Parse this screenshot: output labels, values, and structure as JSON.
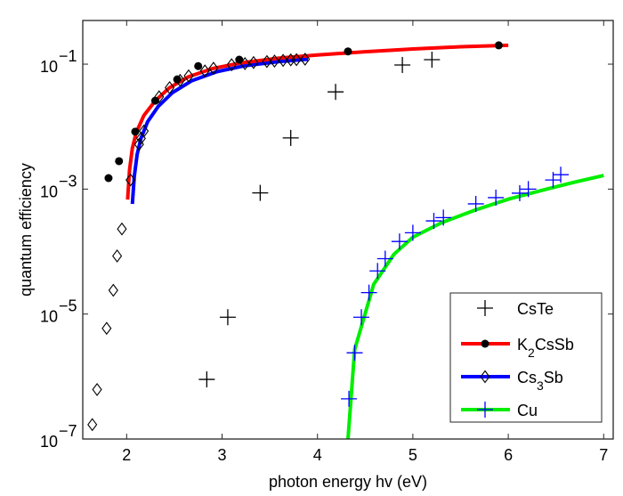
{
  "chart_data": {
    "type": "scatter",
    "title": "",
    "xlabel": "photon energy hv (eV)",
    "ylabel": "quantum efficiency",
    "xscale": "linear",
    "yscale": "log",
    "xlim": [
      1.54,
      7.1
    ],
    "ylim": [
      1e-07,
      0.5
    ],
    "grid": false,
    "legend_position": "bottom-right",
    "x_ticks": [
      2,
      3,
      4,
      5,
      6,
      7
    ],
    "x_tick_labels": [
      "2",
      "3",
      "4",
      "5",
      "6",
      "7"
    ],
    "y_ticks": [
      1e-07,
      1e-05,
      0.001,
      0.1
    ],
    "y_tick_labels": [
      {
        "base": "10",
        "exp": "−7"
      },
      {
        "base": "10",
        "exp": "−5"
      },
      {
        "base": "10",
        "exp": "−3"
      },
      {
        "base": "10",
        "exp": "−1"
      }
    ],
    "y_minor_ticks": [
      1e-06,
      0.0001,
      0.01
    ],
    "series": [
      {
        "name": "CsTe",
        "legend_label": {
          "main": "CsTe",
          "sub": "",
          "tail": ""
        },
        "marker": "plus",
        "marker_color": "#000000",
        "line_color": null,
        "points": [
          {
            "x": 2.84,
            "y": 9e-07
          },
          {
            "x": 3.06,
            "y": 8.9e-06
          },
          {
            "x": 3.4,
            "y": 0.00087
          },
          {
            "x": 3.72,
            "y": 0.0066
          },
          {
            "x": 4.19,
            "y": 0.036
          },
          {
            "x": 4.89,
            "y": 0.097
          },
          {
            "x": 5.2,
            "y": 0.118
          }
        ],
        "curve": []
      },
      {
        "name": "K2CsSb",
        "legend_label": {
          "main": "K",
          "sub": "2",
          "tail": "CsSb"
        },
        "marker": "filled-circle",
        "marker_color": "#000000",
        "line_color": "#ff0000",
        "points": [
          {
            "x": 1.81,
            "y": 0.0015
          },
          {
            "x": 1.92,
            "y": 0.0028
          },
          {
            "x": 2.09,
            "y": 0.0083
          },
          {
            "x": 2.3,
            "y": 0.026
          },
          {
            "x": 2.53,
            "y": 0.057
          },
          {
            "x": 2.75,
            "y": 0.093
          },
          {
            "x": 3.18,
            "y": 0.118
          },
          {
            "x": 4.32,
            "y": 0.16
          },
          {
            "x": 5.9,
            "y": 0.2
          }
        ],
        "curve": [
          {
            "x": 2.01,
            "y": 0.00068
          },
          {
            "x": 2.03,
            "y": 0.002
          },
          {
            "x": 2.06,
            "y": 0.0045
          },
          {
            "x": 2.1,
            "y": 0.008
          },
          {
            "x": 2.18,
            "y": 0.015
          },
          {
            "x": 2.3,
            "y": 0.026
          },
          {
            "x": 2.45,
            "y": 0.042
          },
          {
            "x": 2.65,
            "y": 0.063
          },
          {
            "x": 2.9,
            "y": 0.085
          },
          {
            "x": 3.2,
            "y": 0.105
          },
          {
            "x": 3.6,
            "y": 0.125
          },
          {
            "x": 4.0,
            "y": 0.14
          },
          {
            "x": 4.5,
            "y": 0.158
          },
          {
            "x": 5.0,
            "y": 0.175
          },
          {
            "x": 5.5,
            "y": 0.19
          },
          {
            "x": 6.0,
            "y": 0.2
          }
        ]
      },
      {
        "name": "Cs3Sb",
        "legend_label": {
          "main": "Cs",
          "sub": "3",
          "tail": "Sb"
        },
        "marker": "open-diamond",
        "marker_color": "#000000",
        "line_color": "#0000ff",
        "points": [
          {
            "x": 1.64,
            "y": 1.7e-07
          },
          {
            "x": 1.69,
            "y": 6.2e-07
          },
          {
            "x": 1.79,
            "y": 5.9e-06
          },
          {
            "x": 1.86,
            "y": 2.4e-05
          },
          {
            "x": 1.9,
            "y": 8.5e-05
          },
          {
            "x": 1.95,
            "y": 0.00023
          },
          {
            "x": 2.04,
            "y": 0.0014
          },
          {
            "x": 2.13,
            "y": 0.0052
          },
          {
            "x": 2.15,
            "y": 0.0065
          },
          {
            "x": 2.18,
            "y": 0.0085
          },
          {
            "x": 2.34,
            "y": 0.03
          },
          {
            "x": 2.45,
            "y": 0.042
          },
          {
            "x": 2.56,
            "y": 0.055
          },
          {
            "x": 2.65,
            "y": 0.065
          },
          {
            "x": 2.82,
            "y": 0.078
          },
          {
            "x": 2.91,
            "y": 0.086
          },
          {
            "x": 3.1,
            "y": 0.098
          },
          {
            "x": 3.24,
            "y": 0.102
          },
          {
            "x": 3.33,
            "y": 0.106
          },
          {
            "x": 3.47,
            "y": 0.11
          },
          {
            "x": 3.55,
            "y": 0.112
          },
          {
            "x": 3.64,
            "y": 0.115
          },
          {
            "x": 3.72,
            "y": 0.117
          },
          {
            "x": 3.78,
            "y": 0.118
          },
          {
            "x": 3.87,
            "y": 0.12
          }
        ],
        "curve": [
          {
            "x": 2.06,
            "y": 0.00058
          },
          {
            "x": 2.08,
            "y": 0.0016
          },
          {
            "x": 2.11,
            "y": 0.0036
          },
          {
            "x": 2.15,
            "y": 0.0065
          },
          {
            "x": 2.22,
            "y": 0.012
          },
          {
            "x": 2.33,
            "y": 0.021
          },
          {
            "x": 2.48,
            "y": 0.035
          },
          {
            "x": 2.68,
            "y": 0.054
          },
          {
            "x": 2.95,
            "y": 0.076
          },
          {
            "x": 3.25,
            "y": 0.095
          },
          {
            "x": 3.6,
            "y": 0.11
          },
          {
            "x": 3.9,
            "y": 0.12
          }
        ]
      },
      {
        "name": "Cu",
        "legend_label": {
          "main": "Cu",
          "sub": "",
          "tail": ""
        },
        "marker": "plus",
        "marker_color": "#0000ff",
        "line_color": "#00ee00",
        "points": [
          {
            "x": 4.33,
            "y": 4.4e-07
          },
          {
            "x": 4.39,
            "y": 2.4e-06
          },
          {
            "x": 4.46,
            "y": 8.9e-06
          },
          {
            "x": 4.54,
            "y": 2.2e-05
          },
          {
            "x": 4.63,
            "y": 4.9e-05
          },
          {
            "x": 4.71,
            "y": 7.7e-05
          },
          {
            "x": 4.86,
            "y": 0.000145
          },
          {
            "x": 5.0,
            "y": 0.0002
          },
          {
            "x": 5.22,
            "y": 0.00031
          },
          {
            "x": 5.32,
            "y": 0.00035
          },
          {
            "x": 5.66,
            "y": 0.00058
          },
          {
            "x": 5.87,
            "y": 0.00073
          },
          {
            "x": 6.12,
            "y": 0.00086
          },
          {
            "x": 6.21,
            "y": 0.001
          },
          {
            "x": 6.47,
            "y": 0.0014
          },
          {
            "x": 6.55,
            "y": 0.0017
          }
        ],
        "curve": [
          {
            "x": 4.32,
            "y": 1e-07
          },
          {
            "x": 4.39,
            "y": 2.7e-06
          },
          {
            "x": 4.59,
            "y": 3e-05
          },
          {
            "x": 4.8,
            "y": 9e-05
          },
          {
            "x": 5.0,
            "y": 0.00017
          },
          {
            "x": 5.3,
            "y": 0.00029
          },
          {
            "x": 5.65,
            "y": 0.00046
          },
          {
            "x": 6.0,
            "y": 0.00069
          },
          {
            "x": 6.4,
            "y": 0.001
          },
          {
            "x": 6.7,
            "y": 0.0013
          },
          {
            "x": 7.0,
            "y": 0.00165
          }
        ]
      }
    ]
  }
}
